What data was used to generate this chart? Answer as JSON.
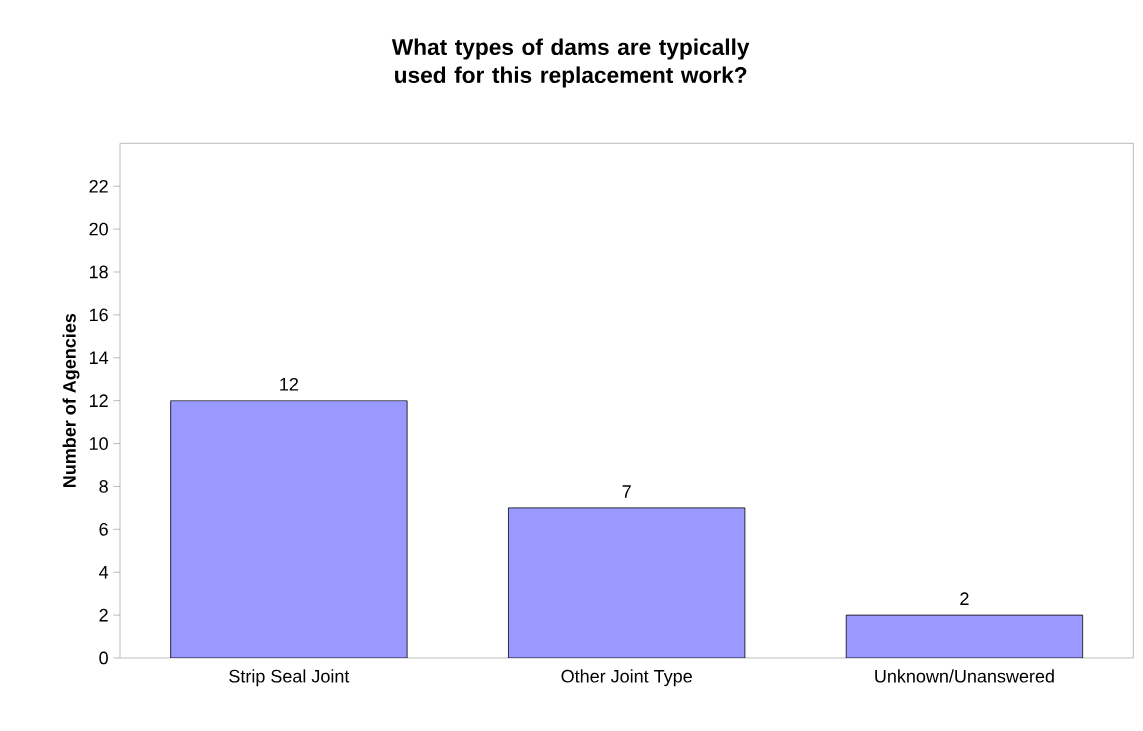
{
  "chart_data": {
    "type": "bar",
    "title": "What types of dams are typically used for this replacement work?",
    "ylabel": "Number of Agencies",
    "categories": [
      "Strip Seal Joint",
      "Other Joint Type",
      "Unknown/Unanswered"
    ],
    "values": [
      12,
      7,
      2
    ],
    "color": "#9999ff",
    "ylim": [
      0,
      24
    ],
    "yticks": [
      0,
      2,
      4,
      6,
      8,
      10,
      12,
      14,
      16,
      18,
      20,
      22
    ],
    "data_labels": true,
    "grid": false
  }
}
